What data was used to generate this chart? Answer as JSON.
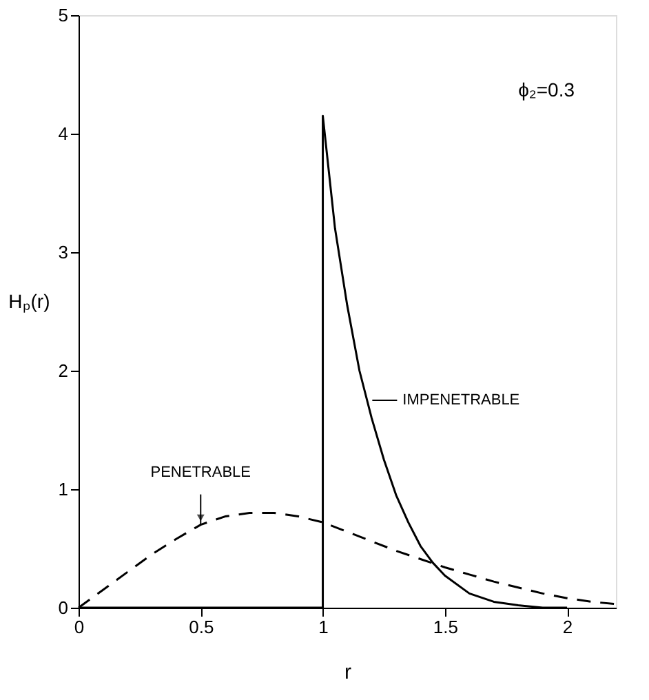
{
  "chart_data": {
    "type": "line",
    "xlabel": "r",
    "ylabel": "Hₚ(r)",
    "xlim": [
      0,
      2.2
    ],
    "xticks": [
      0,
      0.5,
      1,
      1.5,
      2
    ],
    "ylim": [
      0,
      5
    ],
    "yticks": [
      0,
      1,
      2,
      3,
      4,
      5
    ],
    "grid": false,
    "marker": "none",
    "series": [
      {
        "color": "#000000",
        "line_style": "dashed",
        "x": [
          0,
          0.1,
          0.2,
          0.3,
          0.4,
          0.5,
          0.6,
          0.7,
          0.8,
          0.9,
          1.0,
          1.1,
          1.2,
          1.3,
          1.4,
          1.5,
          1.6,
          1.7,
          1.8,
          1.9,
          2.0,
          2.1,
          2.2
        ],
        "values": [
          0,
          0.15,
          0.3,
          0.45,
          0.58,
          0.7,
          0.77,
          0.8,
          0.8,
          0.77,
          0.72,
          0.64,
          0.56,
          0.48,
          0.41,
          0.34,
          0.28,
          0.22,
          0.17,
          0.12,
          0.08,
          0.05,
          0.03
        ]
      },
      {
        "color": "#000000",
        "line_style": "solid",
        "x": [
          0,
          1,
          1,
          1.05,
          1.1,
          1.15,
          1.2,
          1.25,
          1.3,
          1.35,
          1.4,
          1.45,
          1.5,
          1.6,
          1.7,
          1.8,
          1.9,
          2.0
        ],
        "values": [
          0,
          0,
          4.15,
          3.2,
          2.55,
          2.0,
          1.6,
          1.25,
          0.95,
          0.72,
          0.52,
          0.38,
          0.27,
          0.12,
          0.05,
          0.02,
          0.0,
          0.0
        ]
      }
    ],
    "annotations": [
      {
        "text": "PENETRABLE",
        "x": 0.5,
        "y": 0.7
      },
      {
        "text": "IMPENETRABLE",
        "x": 1.18,
        "y": 1.75
      },
      "ϕ₂=0.3"
    ]
  }
}
